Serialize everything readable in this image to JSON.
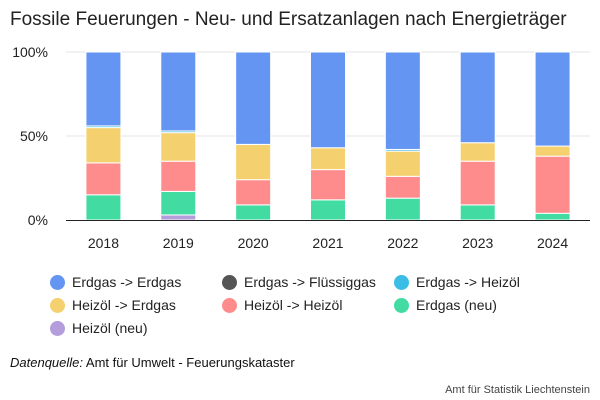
{
  "title": "Fossile Feuerungen - Neu- und Ersatzanlagen nach Energieträger",
  "source": {
    "label": "Datenquelle:",
    "text": "Amt für Umwelt - Feuerungskataster"
  },
  "credit": "Amt für Statistik Liechtenstein",
  "chart_data": {
    "type": "bar",
    "stacked": true,
    "percent_stacked": true,
    "categories": [
      "2018",
      "2019",
      "2020",
      "2021",
      "2022",
      "2023",
      "2024"
    ],
    "ylim": [
      0,
      100
    ],
    "yticks": [
      0,
      50,
      100
    ],
    "ytick_labels": [
      "0%",
      "50%",
      "100%"
    ],
    "grid": true,
    "legend_position": "bottom",
    "series": [
      {
        "name": "Heizöl (neu)",
        "color": "#b39ddb",
        "values": [
          0,
          3,
          0,
          0,
          0,
          0,
          0
        ]
      },
      {
        "name": "Erdgas (neu)",
        "color": "#42dca3",
        "values": [
          15,
          14,
          9,
          12,
          13,
          9,
          4
        ]
      },
      {
        "name": "Heizöl -> Heizöl",
        "color": "#ff8c8c",
        "values": [
          19,
          18,
          15,
          18,
          13,
          26,
          34
        ]
      },
      {
        "name": "Heizöl -> Erdgas",
        "color": "#f5d06e",
        "values": [
          21,
          17,
          21,
          13,
          15,
          11,
          6
        ]
      },
      {
        "name": "Erdgas -> Heizöl",
        "color": "#3bbde6",
        "values": [
          1,
          1,
          0,
          0,
          1,
          0,
          0
        ]
      },
      {
        "name": "Erdgas -> Flüssiggas",
        "color": "#555555",
        "values": [
          0,
          0,
          0,
          0,
          0,
          0,
          0
        ]
      },
      {
        "name": "Erdgas -> Erdgas",
        "color": "#6495f2",
        "values": [
          44,
          47,
          55,
          57,
          58,
          54,
          56
        ]
      }
    ],
    "legend_order": [
      "Erdgas -> Erdgas",
      "Erdgas -> Flüssiggas",
      "Erdgas -> Heizöl",
      "Heizöl -> Erdgas",
      "Heizöl -> Heizöl",
      "Erdgas (neu)",
      "Heizöl (neu)"
    ]
  }
}
